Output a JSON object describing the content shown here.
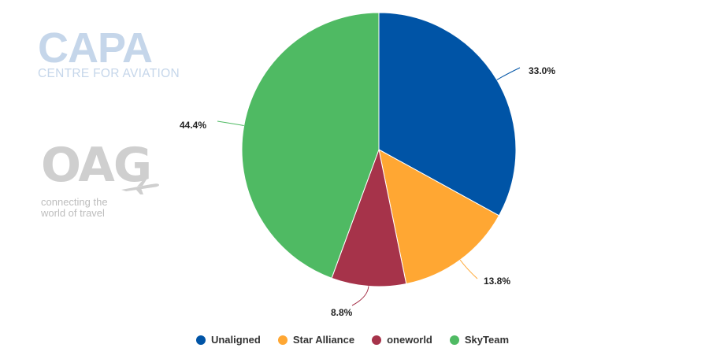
{
  "watermarks": {
    "capa_word": "CAPA",
    "capa_sub": "CENTRE FOR AVIATION",
    "oag_word": "OAG",
    "oag_sub_line1": "connecting the",
    "oag_sub_line2": "world of travel",
    "oag_icon": "airplane-icon"
  },
  "chart_data": {
    "type": "pie",
    "title": "",
    "legend_position": "bottom-center",
    "slices": [
      {
        "name": "Unaligned",
        "value": 33.0,
        "label": "33.0%",
        "color": "#0054a6"
      },
      {
        "name": "Star Alliance",
        "value": 13.8,
        "label": "13.8%",
        "color": "#ffa733"
      },
      {
        "name": "oneworld",
        "value": 8.8,
        "label": "8.8%",
        "color": "#a6334a"
      },
      {
        "name": "SkyTeam",
        "value": 44.4,
        "label": "44.4%",
        "color": "#4fba63"
      }
    ]
  }
}
